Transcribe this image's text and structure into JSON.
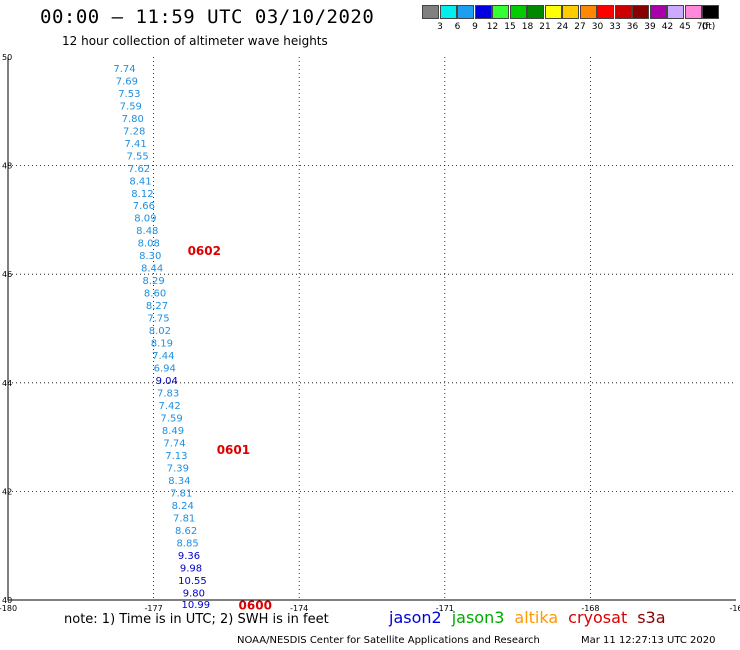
{
  "header": {
    "title": "00:00 – 11:59 UTC 03/10/2020",
    "subtitle": "12 hour collection of altimeter wave heights"
  },
  "colorbar": {
    "unit": "(ft)",
    "bins": [
      {
        "label": "3",
        "color": "#808080"
      },
      {
        "label": "6",
        "color": "#00eeee"
      },
      {
        "label": "9",
        "color": "#1aa0ee"
      },
      {
        "label": "12",
        "color": "#0000e0"
      },
      {
        "label": "15",
        "color": "#33ff33"
      },
      {
        "label": "18",
        "color": "#00cc00"
      },
      {
        "label": "21",
        "color": "#008800"
      },
      {
        "label": "24",
        "color": "#ffff00"
      },
      {
        "label": "27",
        "color": "#ffcc00"
      },
      {
        "label": "30",
        "color": "#ff8800"
      },
      {
        "label": "33",
        "color": "#ff0000"
      },
      {
        "label": "36",
        "color": "#cc0000"
      },
      {
        "label": "39",
        "color": "#880000"
      },
      {
        "label": "42",
        "color": "#aa00aa"
      },
      {
        "label": "45",
        "color": "#ccaaff"
      },
      {
        "label": "70",
        "color": "#ff88dd"
      },
      {
        "label": "",
        "color": "#000000"
      }
    ]
  },
  "footer": {
    "note": "note: 1) Time is in UTC; 2) SWH is in feet",
    "credit": "NOAA/NESDIS Center for Satellite Applications and Research",
    "timestamp": "Mar 11 12:27:13 UTC 2020",
    "satellites": [
      {
        "name": "jason2",
        "color": "#0000dd"
      },
      {
        "name": "jason3",
        "color": "#00aa00"
      },
      {
        "name": "altika",
        "color": "#ff9900"
      },
      {
        "name": "cryosat",
        "color": "#dd0000"
      },
      {
        "name": "s3a",
        "color": "#880000"
      }
    ]
  },
  "chart_data": {
    "type": "scatter",
    "xlim": [
      -180,
      -165
    ],
    "ylim": [
      40,
      50
    ],
    "xticks": [
      "-180",
      "-177",
      "-174",
      "-171",
      "-168",
      "-16"
    ],
    "yticks": [
      "40",
      "42",
      "44",
      "46",
      "48",
      "50"
    ],
    "grid": true,
    "colors": {
      "light": "#1e90e0",
      "dark": "#0000cc",
      "time": "#dd0000"
    },
    "points": [
      {
        "x": -177.6,
        "y": 49.8,
        "v": "7.74",
        "c": "light"
      },
      {
        "x": -177.55,
        "y": 49.57,
        "v": "7.69",
        "c": "light"
      },
      {
        "x": -177.5,
        "y": 49.34,
        "v": "7.53",
        "c": "light"
      },
      {
        "x": -177.47,
        "y": 49.11,
        "v": "7.59",
        "c": "light"
      },
      {
        "x": -177.43,
        "y": 48.88,
        "v": "7.80",
        "c": "light"
      },
      {
        "x": -177.4,
        "y": 48.65,
        "v": "7.28",
        "c": "light"
      },
      {
        "x": -177.37,
        "y": 48.42,
        "v": "7.41",
        "c": "light"
      },
      {
        "x": -177.33,
        "y": 48.19,
        "v": "7.55",
        "c": "light"
      },
      {
        "x": -177.3,
        "y": 47.96,
        "v": "7.62",
        "c": "light"
      },
      {
        "x": -177.27,
        "y": 47.73,
        "v": "8.41",
        "c": "light"
      },
      {
        "x": -177.23,
        "y": 47.5,
        "v": "8.12",
        "c": "light"
      },
      {
        "x": -177.2,
        "y": 47.27,
        "v": "7.66",
        "c": "light"
      },
      {
        "x": -177.17,
        "y": 47.04,
        "v": "8.09",
        "c": "light"
      },
      {
        "x": -177.13,
        "y": 46.81,
        "v": "8.48",
        "c": "light"
      },
      {
        "x": -177.1,
        "y": 46.58,
        "v": "8.08",
        "c": "light"
      },
      {
        "x": -177.07,
        "y": 46.35,
        "v": "8.30",
        "c": "light"
      },
      {
        "x": -177.03,
        "y": 46.12,
        "v": "8.44",
        "c": "light"
      },
      {
        "x": -177.0,
        "y": 45.89,
        "v": "8.29",
        "c": "light"
      },
      {
        "x": -176.97,
        "y": 45.66,
        "v": "8.60",
        "c": "light"
      },
      {
        "x": -176.93,
        "y": 45.43,
        "v": "8.27",
        "c": "light"
      },
      {
        "x": -176.9,
        "y": 45.2,
        "v": "7.75",
        "c": "light"
      },
      {
        "x": -176.87,
        "y": 44.97,
        "v": "8.02",
        "c": "light"
      },
      {
        "x": -176.83,
        "y": 44.74,
        "v": "8.19",
        "c": "light"
      },
      {
        "x": -176.8,
        "y": 44.51,
        "v": "7.44",
        "c": "light"
      },
      {
        "x": -176.77,
        "y": 44.28,
        "v": "6.94",
        "c": "light"
      },
      {
        "x": -176.73,
        "y": 44.05,
        "v": "9.04",
        "c": "dark"
      },
      {
        "x": -176.7,
        "y": 43.82,
        "v": "7.83",
        "c": "light"
      },
      {
        "x": -176.67,
        "y": 43.59,
        "v": "7.42",
        "c": "light"
      },
      {
        "x": -176.63,
        "y": 43.36,
        "v": "7.59",
        "c": "light"
      },
      {
        "x": -176.6,
        "y": 43.13,
        "v": "8.49",
        "c": "light"
      },
      {
        "x": -176.57,
        "y": 42.9,
        "v": "7.74",
        "c": "light"
      },
      {
        "x": -176.53,
        "y": 42.67,
        "v": "7.13",
        "c": "light"
      },
      {
        "x": -176.5,
        "y": 42.44,
        "v": "7.39",
        "c": "light"
      },
      {
        "x": -176.47,
        "y": 42.21,
        "v": "8.34",
        "c": "light"
      },
      {
        "x": -176.43,
        "y": 41.98,
        "v": "7.81",
        "c": "light"
      },
      {
        "x": -176.4,
        "y": 41.75,
        "v": "8.24",
        "c": "light"
      },
      {
        "x": -176.37,
        "y": 41.52,
        "v": "7.81",
        "c": "light"
      },
      {
        "x": -176.33,
        "y": 41.29,
        "v": "8.62",
        "c": "light"
      },
      {
        "x": -176.3,
        "y": 41.06,
        "v": "8.85",
        "c": "light"
      },
      {
        "x": -176.27,
        "y": 40.83,
        "v": "9.36",
        "c": "dark"
      },
      {
        "x": -176.23,
        "y": 40.6,
        "v": "9.98",
        "c": "dark"
      },
      {
        "x": -176.2,
        "y": 40.37,
        "v": "10.55",
        "c": "dark"
      },
      {
        "x": -176.17,
        "y": 40.14,
        "v": "9.80",
        "c": "dark"
      },
      {
        "x": -176.13,
        "y": 39.93,
        "v": "10.99",
        "c": "dark"
      }
    ],
    "times": [
      {
        "x": -176.3,
        "y": 46.45,
        "label": "0602"
      },
      {
        "x": -175.7,
        "y": 42.78,
        "label": "0601"
      },
      {
        "x": -175.25,
        "y": 39.92,
        "label": "0600"
      }
    ]
  }
}
